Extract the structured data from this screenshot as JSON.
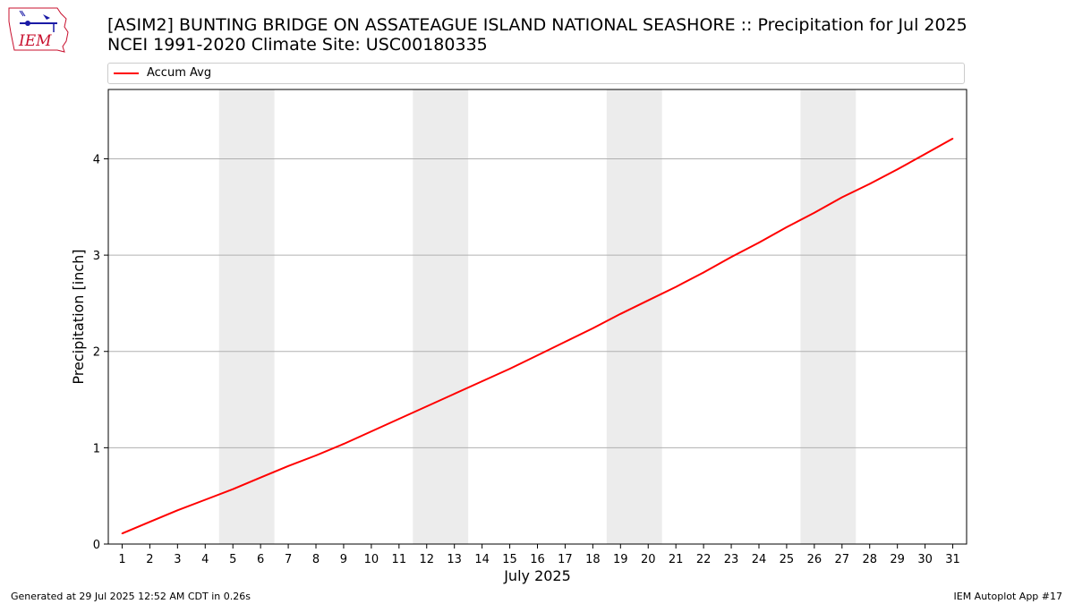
{
  "header": {
    "title_line1": "[ASIM2] BUNTING BRIDGE ON ASSATEAGUE ISLAND NATIONAL SEASHORE :: Precipitation for Jul 2025",
    "title_line2": "NCEI 1991-2020 Climate Site: USC00180335",
    "logo_text": "IEM"
  },
  "footer": {
    "generated": "Generated at 29 Jul 2025 12:52 AM CDT in 0.26s",
    "app": "IEM Autoplot App #17"
  },
  "colors": {
    "line": "#ff0000",
    "weekend_band": "#ececec",
    "grid": "#b0b0b0",
    "logo_red": "#c8102e",
    "logo_blue": "#1a1aa6"
  },
  "chart_data": {
    "type": "line",
    "title": "[ASIM2] BUNTING BRIDGE ON ASSATEAGUE ISLAND NATIONAL SEASHORE :: Precipitation for Jul 2025",
    "subtitle": "NCEI 1991-2020 Climate Site: USC00180335",
    "xlabel": "July 2025",
    "ylabel": "Precipitation [inch]",
    "x": [
      1,
      2,
      3,
      4,
      5,
      6,
      7,
      8,
      9,
      10,
      11,
      12,
      13,
      14,
      15,
      16,
      17,
      18,
      19,
      20,
      21,
      22,
      23,
      24,
      25,
      26,
      27,
      28,
      29,
      30,
      31
    ],
    "series": [
      {
        "name": "Accum Avg",
        "color": "#ff0000",
        "values": [
          0.11,
          0.23,
          0.35,
          0.46,
          0.57,
          0.69,
          0.81,
          0.92,
          1.04,
          1.17,
          1.3,
          1.43,
          1.56,
          1.69,
          1.82,
          1.96,
          2.1,
          2.24,
          2.39,
          2.53,
          2.67,
          2.82,
          2.98,
          3.13,
          3.29,
          3.44,
          3.6,
          3.74,
          3.89,
          4.05,
          4.21
        ]
      }
    ],
    "xlim": [
      0.5,
      31.5
    ],
    "ylim": [
      0,
      4.72
    ],
    "yticks": [
      0,
      1,
      2,
      3,
      4
    ],
    "xticks": [
      1,
      2,
      3,
      4,
      5,
      6,
      7,
      8,
      9,
      10,
      11,
      12,
      13,
      14,
      15,
      16,
      17,
      18,
      19,
      20,
      21,
      22,
      23,
      24,
      25,
      26,
      27,
      28,
      29,
      30,
      31
    ],
    "weekend_bands": [
      [
        4.5,
        6.5
      ],
      [
        11.5,
        13.5
      ],
      [
        18.5,
        20.5
      ],
      [
        25.5,
        27.5
      ]
    ],
    "grid": "horizontal",
    "legend_position": "top"
  }
}
